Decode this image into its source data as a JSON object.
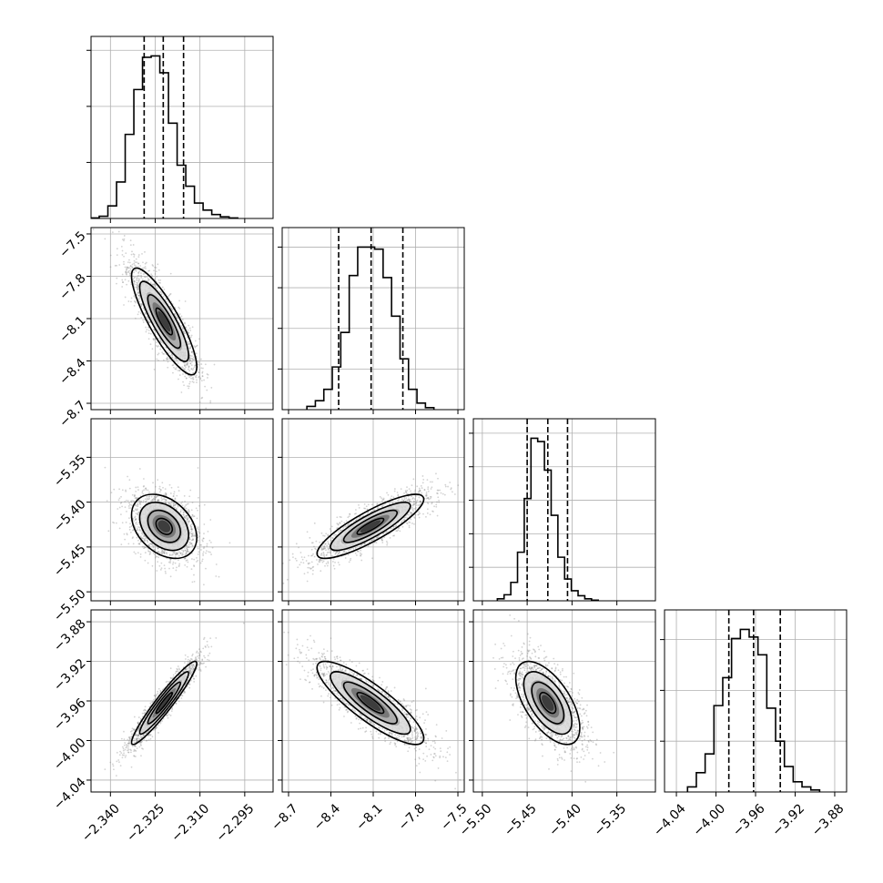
{
  "chart_data": {
    "type": "corner",
    "grid": true,
    "parameters": [
      {
        "index": 0,
        "range": [
          -2.3465,
          -2.2855
        ],
        "ticks": [
          -2.34,
          -2.325,
          -2.31,
          -2.295
        ],
        "tick_labels": [
          "−2.340",
          "−2.325",
          "−2.310",
          "−2.295"
        ],
        "quantiles": [
          -2.3287,
          -2.3223,
          -2.3155
        ],
        "mean": -2.322,
        "sd": 0.0052
      },
      {
        "index": 1,
        "range": [
          -8.745,
          -7.455
        ],
        "ticks": [
          -8.7,
          -8.4,
          -8.1,
          -7.8,
          -7.5
        ],
        "tick_labels": [
          "−8.7",
          "−8.4",
          "−8.1",
          "−7.8",
          "−7.5"
        ],
        "quantiles": [
          -8.345,
          -8.115,
          -7.89
        ],
        "mean": -8.12,
        "sd": 0.18
      },
      {
        "index": 2,
        "range": [
          -5.51,
          -5.307
        ],
        "ticks": [
          -5.5,
          -5.45,
          -5.4,
          -5.35
        ],
        "tick_labels": [
          "−5.50",
          "−5.45",
          "−5.40",
          "−5.35"
        ],
        "quantiles": [
          -5.45,
          -5.427,
          -5.405
        ],
        "mean": -5.427,
        "sd": 0.017
      },
      {
        "index": 3,
        "range": [
          -4.052,
          -3.868
        ],
        "ticks": [
          -4.04,
          -4.0,
          -3.96,
          -3.92,
          -3.88
        ],
        "tick_labels": [
          "−4.04",
          "−4.00",
          "−3.96",
          "−3.92",
          "−3.88"
        ],
        "quantiles": [
          -3.987,
          -3.962,
          -3.935
        ],
        "mean": -3.962,
        "sd": 0.02
      }
    ],
    "histograms": [
      {
        "param": 0,
        "bin_width": 0.0029,
        "counts": [
          2,
          8,
          45,
          130,
          300,
          460,
          575,
          580,
          520,
          340,
          190,
          115,
          55,
          30,
          14,
          6,
          2
        ]
      },
      {
        "param": 1,
        "bin_width": 0.06,
        "counts": [
          8,
          22,
          50,
          105,
          190,
          330,
          400,
          400,
          395,
          325,
          230,
          125,
          50,
          16,
          5
        ]
      },
      {
        "param": 2,
        "bin_width": 0.0075,
        "counts": [
          6,
          18,
          55,
          145,
          305,
          485,
          475,
          390,
          255,
          130,
          65,
          30,
          15,
          6,
          2
        ]
      },
      {
        "param": 3,
        "bin_width": 0.0089,
        "counts": [
          10,
          38,
          75,
          170,
          225,
          302,
          320,
          305,
          270,
          165,
          100,
          50,
          20,
          10,
          4
        ]
      }
    ],
    "correlations": [
      {
        "x": 0,
        "y": 1,
        "rho": -0.85
      },
      {
        "x": 0,
        "y": 2,
        "rho": -0.35
      },
      {
        "x": 1,
        "y": 2,
        "rho": 0.85
      },
      {
        "x": 0,
        "y": 3,
        "rho": 0.95
      },
      {
        "x": 1,
        "y": 3,
        "rho": -0.85
      },
      {
        "x": 2,
        "y": 3,
        "rho": -0.6
      }
    ],
    "contour_levels_sigma": [
      0.5,
      1.0,
      1.5,
      2.0
    ],
    "colors": {
      "line": "#000000",
      "grid": "#b0b0b0",
      "samples": "#808080",
      "density": "#000000"
    }
  }
}
